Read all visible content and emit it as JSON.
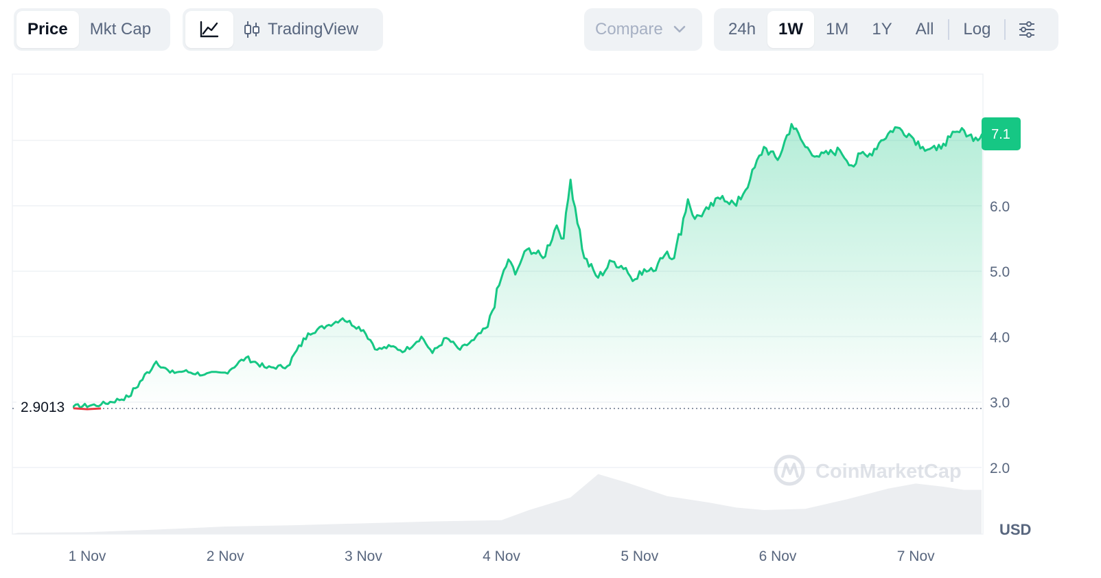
{
  "toolbar": {
    "view_tabs": [
      {
        "label": "Price",
        "active": true
      },
      {
        "label": "Mkt Cap",
        "active": false
      }
    ],
    "chart_style": {
      "line_icon": "line-chart-icon",
      "tradingview_icon": "candlestick-icon",
      "tradingview_label": "TradingView"
    },
    "compare_label": "Compare",
    "compare_icon": "chevron-down-icon",
    "ranges": [
      {
        "label": "24h",
        "active": false
      },
      {
        "label": "1W",
        "active": true
      },
      {
        "label": "1M",
        "active": false
      },
      {
        "label": "1Y",
        "active": false
      },
      {
        "label": "All",
        "active": false
      }
    ],
    "log_label": "Log",
    "settings_icon": "sliders-icon"
  },
  "watermark": "CoinMarketCap",
  "colors": {
    "line": "#16c784",
    "line_down": "#ea3943",
    "badge": "#16c784",
    "volume": "#eceef1",
    "grid": "#eff2f5"
  },
  "chart_data": {
    "type": "line",
    "currency_label": "USD",
    "x_tick_labels": [
      "1 Nov",
      "2 Nov",
      "3 Nov",
      "4 Nov",
      "5 Nov",
      "6 Nov",
      "7 Nov"
    ],
    "y_tick_labels": [
      "2.0",
      "3.0",
      "4.0",
      "5.0",
      "6.0"
    ],
    "y_ticks": [
      2.0,
      3.0,
      4.0,
      5.0,
      6.0
    ],
    "ylim": [
      1.05,
      7.12
    ],
    "open_price": 2.9013,
    "open_price_label": "2.9013",
    "current_price": 7.1,
    "current_price_label": "7.1",
    "x_unit": "days since 1 Nov 00:00",
    "xlim": [
      -0.55,
      6.5
    ],
    "price_series": {
      "name": "Price",
      "x": [
        -0.5,
        -0.3,
        -0.1,
        0.1,
        0.3,
        0.5,
        0.6,
        0.7,
        0.85,
        1.0,
        1.15,
        1.3,
        1.45,
        1.6,
        1.75,
        1.85,
        2.0,
        2.1,
        2.2,
        2.3,
        2.42,
        2.5,
        2.6,
        2.7,
        2.8,
        2.9,
        3.0,
        3.05,
        3.1,
        3.15,
        3.2,
        3.3,
        3.4,
        3.45,
        3.5,
        3.6,
        3.7,
        3.8,
        3.9,
        3.95,
        4.0,
        4.1,
        4.15,
        4.2,
        4.25,
        4.35,
        4.4,
        4.5,
        4.6,
        4.7,
        4.8,
        4.9,
        5.0,
        5.1,
        5.2,
        5.3,
        5.45,
        5.55,
        5.6,
        5.65,
        5.75,
        5.85,
        5.95,
        6.05,
        6.15,
        6.2,
        6.25,
        6.35,
        6.45,
        6.48
      ],
      "values": [
        2.9,
        2.92,
        2.93,
        2.96,
        3.08,
        3.62,
        3.45,
        3.47,
        3.42,
        3.45,
        3.68,
        3.52,
        3.55,
        4.05,
        4.18,
        4.28,
        4.1,
        3.8,
        3.85,
        3.78,
        4.0,
        3.75,
        3.98,
        3.8,
        3.95,
        4.15,
        4.9,
        5.18,
        4.95,
        5.2,
        5.35,
        5.2,
        5.7,
        5.5,
        6.4,
        5.2,
        4.9,
        5.15,
        5.05,
        4.85,
        5.0,
        5.0,
        5.2,
        5.3,
        5.2,
        6.1,
        5.8,
        5.95,
        6.15,
        6.0,
        6.4,
        6.9,
        6.7,
        7.25,
        6.9,
        6.75,
        6.85,
        6.6,
        6.8,
        6.75,
        7.0,
        7.2,
        7.1,
        6.9,
        6.85,
        6.95,
        7.05,
        7.15,
        7.0,
        7.1
      ]
    },
    "volume_series": {
      "name": "Volume",
      "x": [
        -0.5,
        0.0,
        0.5,
        1.0,
        1.5,
        2.0,
        2.5,
        3.0,
        3.2,
        3.5,
        3.7,
        3.9,
        4.2,
        4.5,
        4.7,
        4.9,
        5.2,
        5.5,
        5.8,
        6.0,
        6.2,
        6.35,
        6.48
      ],
      "relative": [
        0.02,
        0.03,
        0.07,
        0.12,
        0.14,
        0.17,
        0.2,
        0.22,
        0.38,
        0.58,
        0.95,
        0.82,
        0.6,
        0.5,
        0.42,
        0.38,
        0.4,
        0.55,
        0.72,
        0.8,
        0.75,
        0.7,
        0.7
      ]
    }
  }
}
